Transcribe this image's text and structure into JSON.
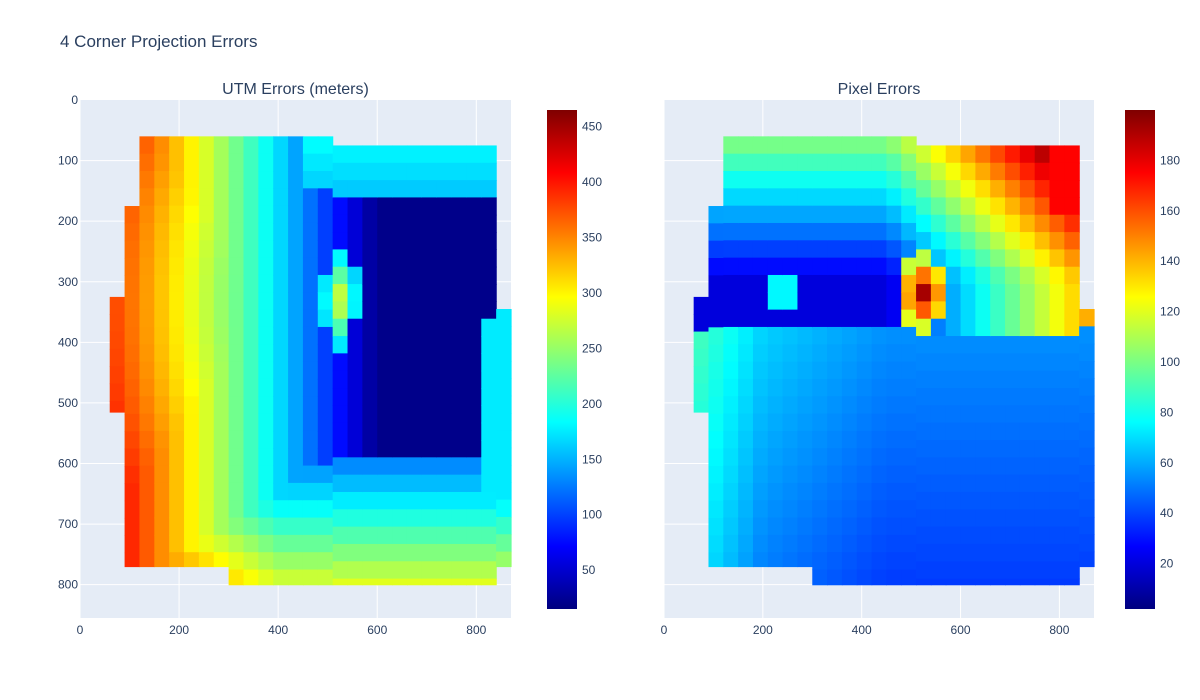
{
  "figure": {
    "title": "4 Corner Projection Errors"
  },
  "chart_data": [
    {
      "type": "heatmap",
      "title": "UTM Errors (meters)",
      "xlabel": "",
      "ylabel": "",
      "x_ticks": [
        0,
        200,
        400,
        600,
        800
      ],
      "y_ticks": [
        0,
        100,
        200,
        300,
        400,
        500,
        600,
        700,
        800
      ],
      "xlim": [
        0,
        870
      ],
      "ylim": [
        855,
        0
      ],
      "y_reversed": true,
      "grid": true,
      "colorscale": "jet",
      "colorbar": {
        "min": 15,
        "max": 465,
        "ticks": [
          50,
          100,
          150,
          200,
          250,
          300,
          350,
          400,
          450
        ]
      },
      "cell_size": [
        30,
        28.6
      ],
      "field": "utm",
      "approx_value_range": [
        20,
        460
      ]
    },
    {
      "type": "heatmap",
      "title": "Pixel Errors",
      "xlabel": "",
      "ylabel": "",
      "x_ticks": [
        0,
        200,
        400,
        600,
        800
      ],
      "y_ticks": [],
      "xlim": [
        0,
        870
      ],
      "ylim": [
        855,
        0
      ],
      "y_reversed": true,
      "grid": true,
      "colorscale": "jet",
      "colorbar": {
        "min": 2,
        "max": 200,
        "ticks": [
          20,
          40,
          60,
          80,
          100,
          120,
          140,
          160,
          180
        ]
      },
      "cell_size": [
        30,
        28.6
      ],
      "field": "pixel",
      "approx_value_range": [
        5,
        198
      ]
    }
  ],
  "colors": {
    "plot_bg": "#E5ECF6",
    "grid": "#ffffff",
    "text": "#2a3f5f",
    "jet": [
      "#00007F",
      "#0000FF",
      "#007FFF",
      "#00FFFF",
      "#7FFF7F",
      "#FFFF00",
      "#FF7F00",
      "#FF0000",
      "#7F0000"
    ]
  }
}
